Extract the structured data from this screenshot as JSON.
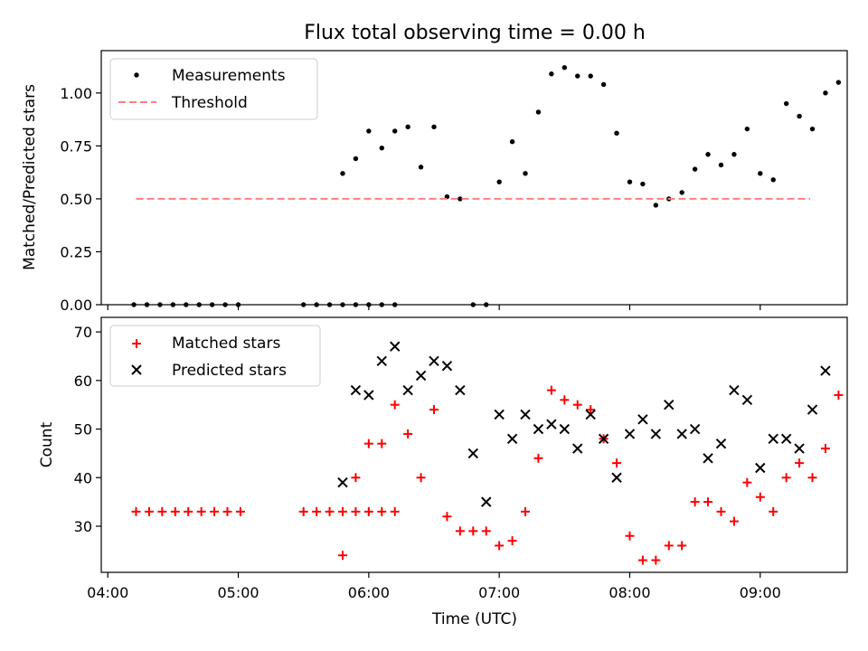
{
  "chart_data": [
    {
      "type": "scatter",
      "title": "Flux total observing time = 0.00 h",
      "ylabel": "Matched/Predicted stars",
      "ylim": [
        0.0,
        1.2
      ],
      "yticks": [
        "0.00",
        "0.25",
        "0.50",
        "0.75",
        "1.00"
      ],
      "ytick_values": [
        0.0,
        0.25,
        0.5,
        0.75,
        1.0
      ],
      "legend_position": "upper-left",
      "series": [
        {
          "name": "Measurements",
          "marker": "dot",
          "color": "#000000",
          "x": [
            "04:12",
            "04:18",
            "04:24",
            "04:30",
            "04:36",
            "04:42",
            "04:48",
            "04:54",
            "05:00",
            "05:30",
            "05:36",
            "05:42",
            "05:48",
            "05:54",
            "06:00",
            "06:06",
            "06:12",
            "05:48",
            "05:54",
            "06:00",
            "06:06",
            "06:12",
            "06:18",
            "06:24",
            "06:30",
            "06:36",
            "06:42",
            "06:48",
            "06:54",
            "07:00",
            "07:06",
            "07:12",
            "07:18",
            "07:24",
            "07:30",
            "07:36",
            "07:42",
            "07:48",
            "07:54",
            "08:00",
            "08:06",
            "08:12",
            "08:18",
            "08:24",
            "08:30",
            "08:36",
            "08:42",
            "08:48",
            "08:54",
            "09:00",
            "09:06",
            "09:12",
            "09:18",
            "09:24",
            "09:30",
            "09:36"
          ],
          "y": [
            0,
            0,
            0,
            0,
            0,
            0,
            0,
            0,
            0,
            0,
            0,
            0,
            0,
            0,
            0,
            0,
            0,
            0.62,
            0.69,
            0.82,
            0.74,
            0.82,
            0.84,
            0.65,
            0.84,
            0.51,
            0.5,
            0,
            0,
            0.58,
            0.77,
            0.62,
            0.91,
            1.09,
            1.12,
            1.08,
            1.08,
            1.04,
            0.81,
            0.58,
            0.57,
            0.47,
            0.5,
            0.53,
            0.64,
            0.71,
            0.66,
            0.71,
            0.83,
            0.62,
            0.59,
            0.95,
            0.89,
            0.83,
            1.0,
            1.05
          ]
        },
        {
          "name": "Threshold",
          "style": "dashed",
          "color": "#ff7f7f",
          "x": [
            "04:13",
            "09:23"
          ],
          "y": [
            0.5,
            0.5
          ]
        }
      ]
    },
    {
      "type": "scatter",
      "xlabel": "Time (UTC)",
      "ylabel": "Count",
      "ylim": [
        20.5,
        73
      ],
      "yticks": [
        "30",
        "40",
        "50",
        "60",
        "70"
      ],
      "ytick_values": [
        30,
        40,
        50,
        60,
        70
      ],
      "xticks": [
        "04:00",
        "05:00",
        "06:00",
        "07:00",
        "08:00",
        "09:00"
      ],
      "legend_position": "upper-left",
      "series": [
        {
          "name": "Matched stars",
          "marker": "plus",
          "color": "#ff0000",
          "x": [
            "04:13",
            "04:19",
            "04:25",
            "04:31",
            "04:37",
            "04:43",
            "04:49",
            "04:55",
            "05:01",
            "05:30",
            "05:36",
            "05:42",
            "05:48",
            "05:54",
            "06:00",
            "06:06",
            "06:12",
            "05:48",
            "05:54",
            "06:00",
            "06:06",
            "06:12",
            "06:18",
            "06:24",
            "06:30",
            "06:36",
            "06:42",
            "06:48",
            "06:54",
            "07:00",
            "07:06",
            "07:12",
            "07:18",
            "07:24",
            "07:30",
            "07:36",
            "07:42",
            "07:48",
            "07:54",
            "08:00",
            "08:06",
            "08:12",
            "08:18",
            "08:24",
            "08:30",
            "08:36",
            "08:42",
            "08:48",
            "08:54",
            "09:00",
            "09:06",
            "09:12",
            "09:18",
            "09:24",
            "09:30",
            "09:36"
          ],
          "y": [
            33,
            33,
            33,
            33,
            33,
            33,
            33,
            33,
            33,
            33,
            33,
            33,
            33,
            33,
            33,
            33,
            33,
            24,
            40,
            47,
            47,
            55,
            49,
            40,
            54,
            32,
            29,
            29,
            29,
            26,
            27,
            33,
            44,
            58,
            56,
            55,
            54,
            48,
            43,
            28,
            23,
            23,
            26,
            26,
            35,
            35,
            33,
            31,
            39,
            36,
            33,
            40,
            43,
            40,
            46,
            57
          ]
        },
        {
          "name": "Predicted stars",
          "marker": "x",
          "color": "#000000",
          "x": [
            "05:48",
            "05:54",
            "06:00",
            "06:06",
            "06:12",
            "06:18",
            "06:24",
            "06:30",
            "06:36",
            "06:42",
            "06:48",
            "06:54",
            "07:00",
            "07:06",
            "07:12",
            "07:18",
            "07:24",
            "07:30",
            "07:36",
            "07:42",
            "07:48",
            "07:54",
            "08:00",
            "08:06",
            "08:12",
            "08:18",
            "08:24",
            "08:30",
            "08:36",
            "08:42",
            "08:48",
            "08:54",
            "09:00",
            "09:06",
            "09:12",
            "09:18",
            "09:24",
            "09:30"
          ],
          "y": [
            39,
            58,
            57,
            64,
            67,
            58,
            61,
            64,
            63,
            58,
            45,
            35,
            53,
            48,
            53,
            50,
            51,
            50,
            46,
            53,
            48,
            40,
            49,
            52,
            49,
            55,
            49,
            50,
            44,
            47,
            58,
            56,
            42,
            48,
            48,
            46,
            54,
            62
          ]
        }
      ]
    }
  ]
}
